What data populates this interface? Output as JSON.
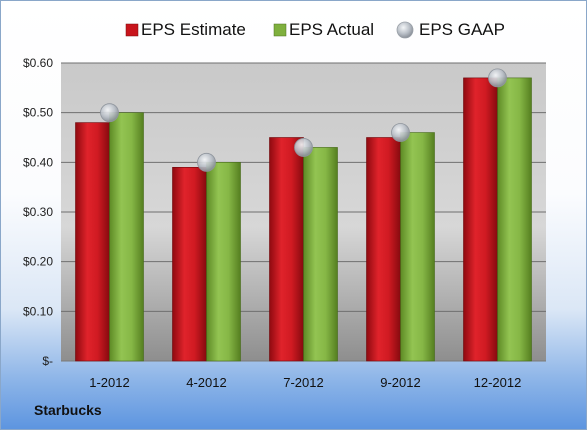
{
  "chart_data": {
    "type": "bar",
    "title": "",
    "xlabel": "",
    "ylabel": "",
    "categories": [
      "1-2012",
      "4-2012",
      "7-2012",
      "9-2012",
      "12-2012"
    ],
    "series": [
      {
        "name": "EPS Estimate",
        "kind": "bar",
        "color": "#c8141c",
        "values": [
          0.48,
          0.39,
          0.45,
          0.45,
          0.57
        ]
      },
      {
        "name": "EPS Actual",
        "kind": "bar",
        "color": "#7fb03e",
        "values": [
          0.5,
          0.4,
          0.43,
          0.46,
          0.57
        ]
      },
      {
        "name": "EPS GAAP",
        "kind": "marker",
        "color": "#b8bec6",
        "values": [
          0.5,
          0.4,
          0.43,
          0.46,
          0.57
        ]
      }
    ],
    "ylim": [
      0,
      0.6
    ],
    "yticks": [
      0,
      0.1,
      0.2,
      0.3,
      0.4,
      0.5,
      0.6
    ],
    "ytick_labels": [
      "$-",
      "$0.10",
      "$0.20",
      "$0.30",
      "$0.40",
      "$0.50",
      "$0.60"
    ],
    "grid": true,
    "legend_position": "top"
  },
  "footer": {
    "company": "Starbucks"
  }
}
